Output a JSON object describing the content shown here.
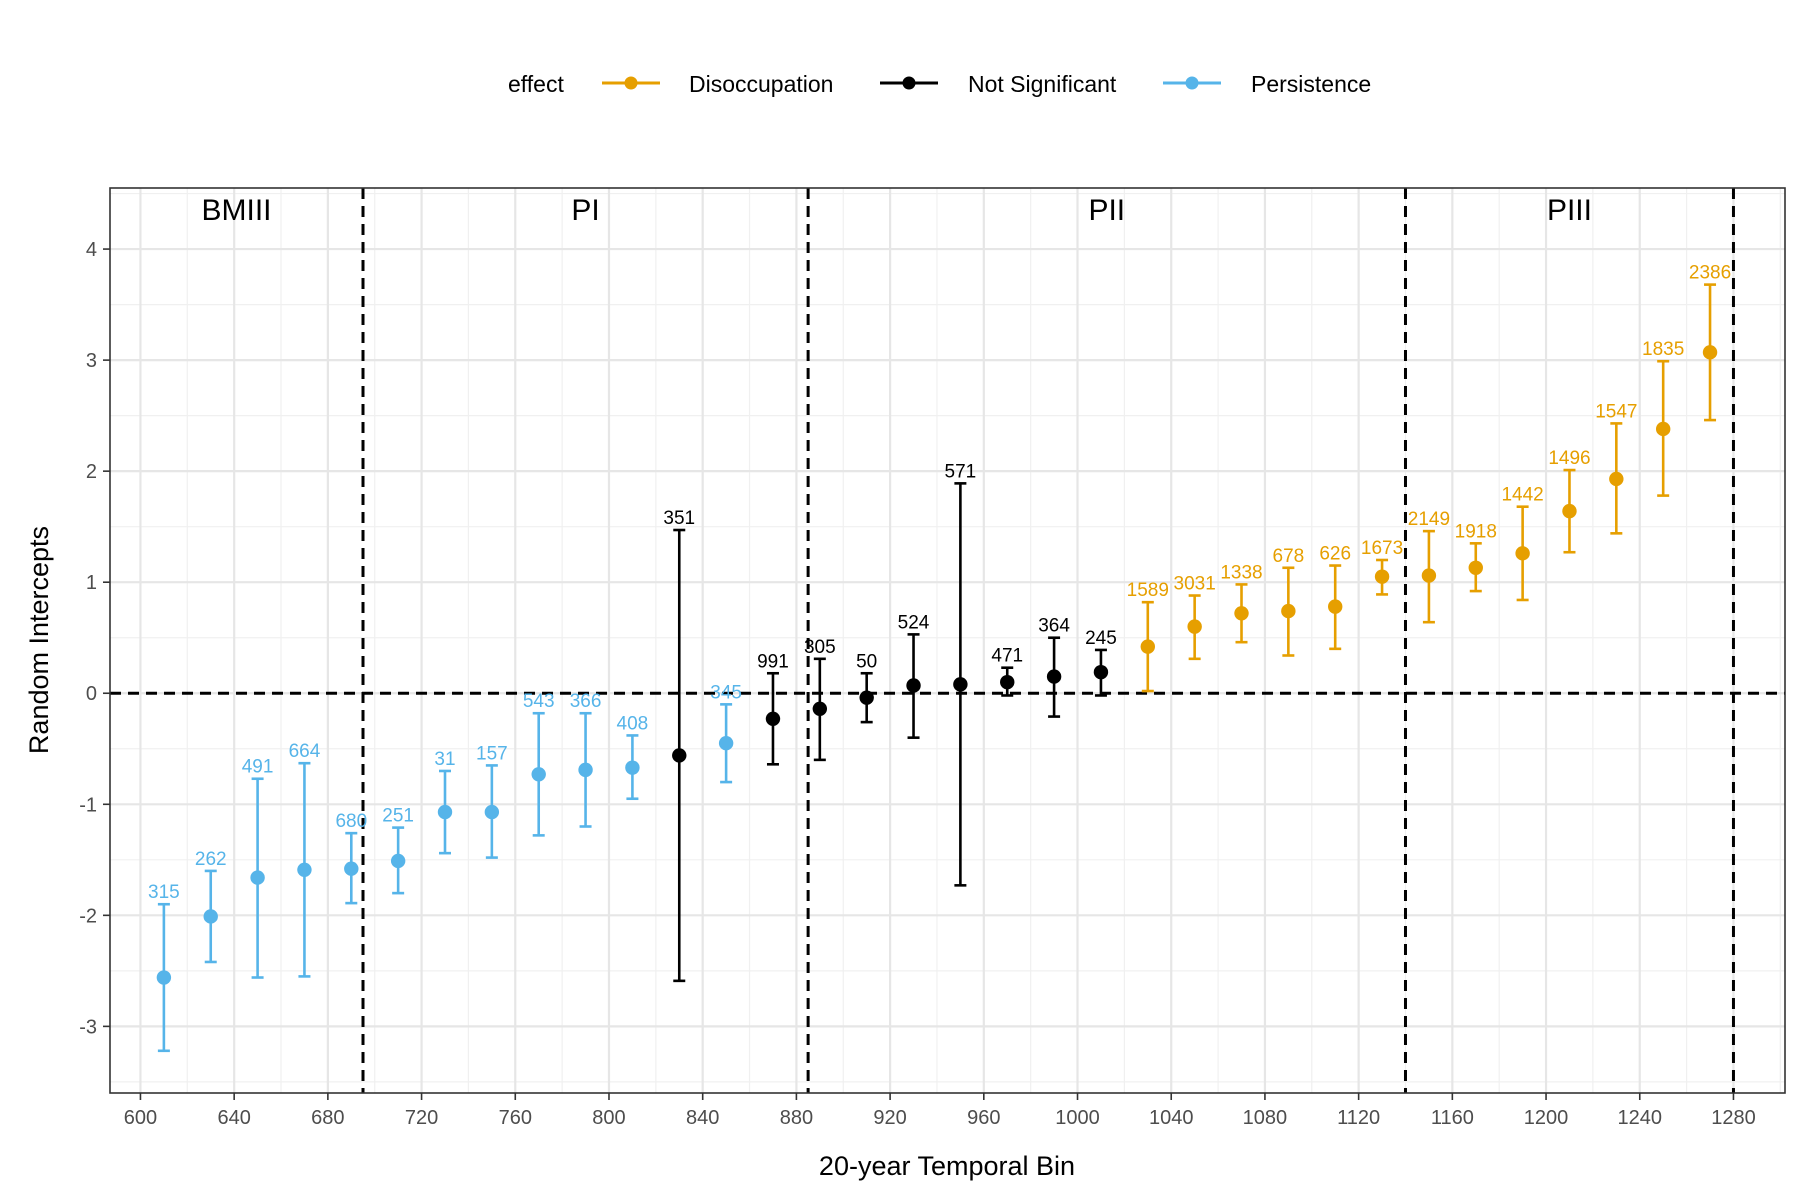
{
  "chart_data": {
    "type": "errorbar",
    "title": "",
    "xlabel": "20-year Temporal Bin",
    "ylabel": "Random Intercepts",
    "xlim": [
      587,
      1302
    ],
    "ylim": [
      -3.6,
      4.55
    ],
    "x_ticks": [
      600,
      640,
      680,
      720,
      760,
      800,
      840,
      880,
      920,
      960,
      1000,
      1040,
      1080,
      1120,
      1160,
      1200,
      1240,
      1280
    ],
    "y_ticks": [
      -3,
      -2,
      -1,
      0,
      1,
      2,
      3,
      4
    ],
    "y_tick_labels": [
      "-3",
      "-2",
      "-1",
      "0",
      "1",
      "2",
      "3",
      "4"
    ],
    "grid": true,
    "legend": {
      "title": "effect",
      "position": "top",
      "entries": [
        {
          "name": "Disoccupation",
          "color": "#E69F00"
        },
        {
          "name": "Not Significant",
          "color": "#000000"
        },
        {
          "name": "Persistence",
          "color": "#56B4E9"
        }
      ]
    },
    "reference_lines": {
      "horizontal": [
        0
      ],
      "vertical": [
        695,
        885,
        1140,
        1280
      ]
    },
    "periods": [
      {
        "label": "BMIII",
        "start": 587,
        "end": 695
      },
      {
        "label": "PI",
        "start": 695,
        "end": 885
      },
      {
        "label": "PII",
        "start": 885,
        "end": 1140
      },
      {
        "label": "PIII",
        "start": 1140,
        "end": 1280
      }
    ],
    "points": [
      {
        "x": 610,
        "y": -2.56,
        "lo": -3.22,
        "hi": -1.9,
        "label": "315",
        "effect": "Persistence"
      },
      {
        "x": 630,
        "y": -2.01,
        "lo": -2.42,
        "hi": -1.6,
        "label": "262",
        "effect": "Persistence"
      },
      {
        "x": 650,
        "y": -1.66,
        "lo": -2.56,
        "hi": -0.77,
        "label": "491",
        "effect": "Persistence"
      },
      {
        "x": 670,
        "y": -1.59,
        "lo": -2.55,
        "hi": -0.63,
        "label": "664",
        "effect": "Persistence"
      },
      {
        "x": 690,
        "y": -1.58,
        "lo": -1.89,
        "hi": -1.26,
        "label": "680",
        "effect": "Persistence"
      },
      {
        "x": 710,
        "y": -1.51,
        "lo": -1.8,
        "hi": -1.21,
        "label": "251",
        "effect": "Persistence"
      },
      {
        "x": 730,
        "y": -1.07,
        "lo": -1.44,
        "hi": -0.7,
        "label": "31",
        "effect": "Persistence"
      },
      {
        "x": 750,
        "y": -1.07,
        "lo": -1.48,
        "hi": -0.65,
        "label": "157",
        "effect": "Persistence"
      },
      {
        "x": 770,
        "y": -0.73,
        "lo": -1.28,
        "hi": -0.18,
        "label": "543",
        "effect": "Persistence"
      },
      {
        "x": 790,
        "y": -0.69,
        "lo": -1.2,
        "hi": -0.18,
        "label": "366",
        "effect": "Persistence"
      },
      {
        "x": 810,
        "y": -0.67,
        "lo": -0.95,
        "hi": -0.38,
        "label": "408",
        "effect": "Persistence"
      },
      {
        "x": 830,
        "y": -0.56,
        "lo": -2.59,
        "hi": 1.47,
        "label": "351",
        "effect": "Not Significant"
      },
      {
        "x": 850,
        "y": -0.45,
        "lo": -0.8,
        "hi": -0.1,
        "label": "345",
        "effect": "Persistence"
      },
      {
        "x": 870,
        "y": -0.23,
        "lo": -0.64,
        "hi": 0.18,
        "label": "991",
        "effect": "Not Significant"
      },
      {
        "x": 890,
        "y": -0.14,
        "lo": -0.6,
        "hi": 0.31,
        "label": "305",
        "effect": "Not Significant"
      },
      {
        "x": 910,
        "y": -0.04,
        "lo": -0.26,
        "hi": 0.18,
        "label": "50",
        "effect": "Not Significant"
      },
      {
        "x": 930,
        "y": 0.07,
        "lo": -0.4,
        "hi": 0.53,
        "label": "524",
        "effect": "Not Significant"
      },
      {
        "x": 950,
        "y": 0.08,
        "lo": -1.73,
        "hi": 1.89,
        "label": "571",
        "effect": "Not Significant"
      },
      {
        "x": 970,
        "y": 0.1,
        "lo": -0.02,
        "hi": 0.23,
        "label": "471",
        "effect": "Not Significant"
      },
      {
        "x": 990,
        "y": 0.15,
        "lo": -0.21,
        "hi": 0.5,
        "label": "364",
        "effect": "Not Significant"
      },
      {
        "x": 1010,
        "y": 0.19,
        "lo": -0.02,
        "hi": 0.39,
        "label": "245",
        "effect": "Not Significant"
      },
      {
        "x": 1030,
        "y": 0.42,
        "lo": 0.02,
        "hi": 0.82,
        "label": "1589",
        "effect": "Disoccupation"
      },
      {
        "x": 1050,
        "y": 0.6,
        "lo": 0.31,
        "hi": 0.88,
        "label": "3031",
        "effect": "Disoccupation"
      },
      {
        "x": 1070,
        "y": 0.72,
        "lo": 0.46,
        "hi": 0.98,
        "label": "1338",
        "effect": "Disoccupation"
      },
      {
        "x": 1090,
        "y": 0.74,
        "lo": 0.34,
        "hi": 1.13,
        "label": "678",
        "effect": "Disoccupation"
      },
      {
        "x": 1110,
        "y": 0.78,
        "lo": 0.4,
        "hi": 1.15,
        "label": "626",
        "effect": "Disoccupation"
      },
      {
        "x": 1130,
        "y": 1.05,
        "lo": 0.89,
        "hi": 1.2,
        "label": "1673",
        "effect": "Disoccupation"
      },
      {
        "x": 1150,
        "y": 1.06,
        "lo": 0.64,
        "hi": 1.46,
        "label": "2149",
        "effect": "Disoccupation"
      },
      {
        "x": 1170,
        "y": 1.13,
        "lo": 0.92,
        "hi": 1.35,
        "label": "1918",
        "effect": "Disoccupation"
      },
      {
        "x": 1190,
        "y": 1.26,
        "lo": 0.84,
        "hi": 1.68,
        "label": "1442",
        "effect": "Disoccupation"
      },
      {
        "x": 1210,
        "y": 1.64,
        "lo": 1.27,
        "hi": 2.01,
        "label": "1496",
        "effect": "Disoccupation"
      },
      {
        "x": 1230,
        "y": 1.93,
        "lo": 1.44,
        "hi": 2.43,
        "label": "1547",
        "effect": "Disoccupation"
      },
      {
        "x": 1250,
        "y": 2.38,
        "lo": 1.78,
        "hi": 2.99,
        "label": "1835",
        "effect": "Disoccupation"
      },
      {
        "x": 1270,
        "y": 3.07,
        "lo": 2.46,
        "hi": 3.68,
        "label": "2386",
        "effect": "Disoccupation"
      }
    ]
  }
}
